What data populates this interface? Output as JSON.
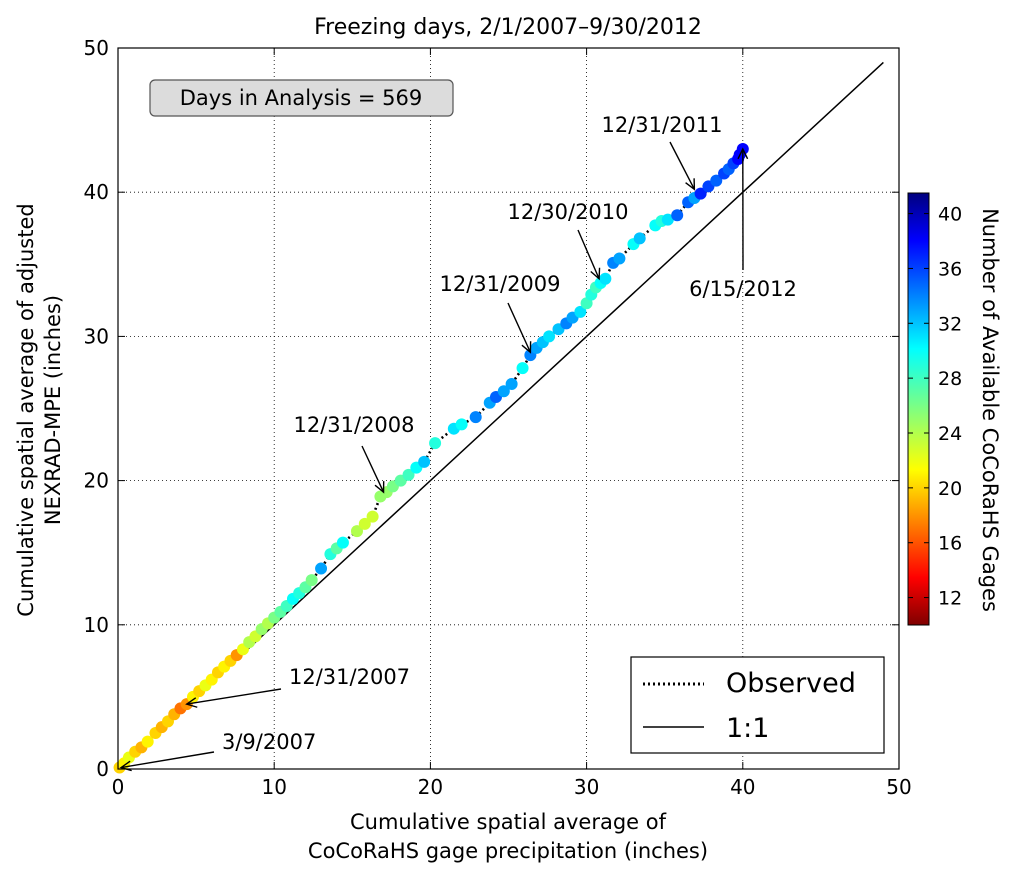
{
  "chart_data": {
    "type": "scatter",
    "title": "Freezing days, 2/1/2007–9/30/2012",
    "xlabel_lines": [
      "Cumulative spatial average of",
      "CoCoRaHS gage precipitation (inches)"
    ],
    "ylabel_lines": [
      "Cumulative spatial average of adjusted",
      "NEXRAD-MPE (inches)"
    ],
    "xlim": [
      0,
      50
    ],
    "ylim": [
      0,
      50
    ],
    "x_ticks": [
      0,
      10,
      20,
      30,
      40,
      50
    ],
    "y_ticks": [
      0,
      10,
      20,
      30,
      40,
      50
    ],
    "grid": true,
    "infobox": "Days in Analysis = 569",
    "legend": {
      "placement": "lower-right",
      "items": [
        {
          "label": "Observed",
          "style": "dotted"
        },
        {
          "label": "1:1",
          "style": "solid"
        }
      ]
    },
    "colorbar": {
      "label": "Number of Available CoCoRaHS Gages",
      "range": [
        10,
        41.5
      ],
      "ticks": [
        12,
        16,
        20,
        24,
        28,
        32,
        36,
        40
      ],
      "colormap": "jet"
    },
    "one_to_one_line": {
      "x": [
        0,
        49
      ],
      "y": [
        0,
        49
      ]
    },
    "annotations": [
      {
        "text": "12/31/2011",
        "x": 36.9,
        "y": 40.2
      },
      {
        "text": "6/15/2012",
        "x": 40.0,
        "y": 43.0
      },
      {
        "text": "12/30/2010",
        "x": 30.8,
        "y": 34.0
      },
      {
        "text": "12/31/2009",
        "x": 26.4,
        "y": 28.9
      },
      {
        "text": "12/31/2008",
        "x": 17.0,
        "y": 19.2
      },
      {
        "text": "12/31/2007",
        "x": 4.4,
        "y": 4.5
      },
      {
        "text": "3/9/2007",
        "x": 0.2,
        "y": 0.1
      }
    ],
    "series": [
      {
        "points": [
          [
            0.1,
            0.1,
            20
          ],
          [
            0.4,
            0.4,
            21
          ],
          [
            0.7,
            0.8,
            22
          ],
          [
            1.1,
            1.2,
            20
          ],
          [
            1.5,
            1.5,
            19
          ],
          [
            1.9,
            1.9,
            21
          ],
          [
            2.4,
            2.5,
            20
          ],
          [
            2.8,
            2.9,
            19
          ],
          [
            3.2,
            3.3,
            20
          ],
          [
            3.6,
            3.8,
            19
          ],
          [
            4.0,
            4.2,
            17
          ],
          [
            4.4,
            4.5,
            18
          ],
          [
            4.8,
            5.0,
            21
          ],
          [
            5.2,
            5.4,
            20
          ],
          [
            5.6,
            5.8,
            22
          ],
          [
            6.0,
            6.2,
            21
          ],
          [
            6.4,
            6.7,
            20
          ],
          [
            6.8,
            7.1,
            21
          ],
          [
            7.2,
            7.5,
            20
          ],
          [
            7.6,
            7.9,
            18
          ],
          [
            8.0,
            8.3,
            22
          ],
          [
            8.4,
            8.8,
            24
          ],
          [
            8.8,
            9.2,
            23
          ],
          [
            9.2,
            9.7,
            25
          ],
          [
            9.6,
            10.1,
            24
          ],
          [
            10.0,
            10.5,
            26
          ],
          [
            10.4,
            10.9,
            27
          ],
          [
            10.8,
            11.3,
            28
          ],
          [
            11.2,
            11.8,
            30
          ],
          [
            11.6,
            12.2,
            29
          ],
          [
            12.0,
            12.6,
            27
          ],
          [
            12.4,
            13.1,
            26
          ],
          [
            13.0,
            13.9,
            33
          ],
          [
            13.6,
            14.9,
            29
          ],
          [
            14.0,
            15.3,
            27
          ],
          [
            14.4,
            15.7,
            30
          ],
          [
            15.3,
            16.5,
            24
          ],
          [
            15.8,
            17.0,
            23
          ],
          [
            16.3,
            17.5,
            23
          ],
          [
            16.8,
            18.9,
            25
          ],
          [
            17.2,
            19.2,
            25
          ],
          [
            17.6,
            19.6,
            26
          ],
          [
            18.1,
            20.0,
            27
          ],
          [
            18.6,
            20.4,
            28
          ],
          [
            19.1,
            20.9,
            30
          ],
          [
            19.6,
            21.3,
            32
          ],
          [
            20.3,
            22.6,
            29
          ],
          [
            21.5,
            23.6,
            31
          ],
          [
            22.0,
            23.9,
            30
          ],
          [
            22.9,
            24.4,
            34
          ],
          [
            23.8,
            25.4,
            33
          ],
          [
            24.2,
            25.8,
            35
          ],
          [
            24.7,
            26.2,
            33
          ],
          [
            25.2,
            26.7,
            33
          ],
          [
            25.9,
            27.8,
            30
          ],
          [
            26.4,
            28.7,
            34
          ],
          [
            26.8,
            29.2,
            33
          ],
          [
            27.2,
            29.6,
            32
          ],
          [
            27.6,
            30.0,
            31
          ],
          [
            28.2,
            30.5,
            32
          ],
          [
            28.7,
            30.9,
            34
          ],
          [
            29.1,
            31.3,
            33
          ],
          [
            29.6,
            31.7,
            31
          ],
          [
            30.0,
            32.3,
            28
          ],
          [
            30.3,
            32.9,
            29
          ],
          [
            30.6,
            33.4,
            28
          ],
          [
            30.9,
            33.7,
            30
          ],
          [
            31.2,
            34.0,
            31
          ],
          [
            31.7,
            35.1,
            34
          ],
          [
            32.1,
            35.4,
            33
          ],
          [
            33.0,
            36.4,
            30
          ],
          [
            33.4,
            36.8,
            32
          ],
          [
            34.4,
            37.7,
            30
          ],
          [
            34.8,
            38.0,
            29
          ],
          [
            35.2,
            38.1,
            31
          ],
          [
            35.8,
            38.4,
            35
          ],
          [
            36.5,
            39.3,
            35
          ],
          [
            36.9,
            39.6,
            33
          ],
          [
            37.3,
            39.9,
            37
          ],
          [
            37.8,
            40.4,
            36
          ],
          [
            38.3,
            40.8,
            35
          ],
          [
            38.8,
            41.3,
            36
          ],
          [
            39.1,
            41.6,
            35
          ],
          [
            39.4,
            42.0,
            36
          ],
          [
            39.7,
            42.3,
            38
          ],
          [
            39.8,
            42.6,
            38
          ],
          [
            40.0,
            43.0,
            38
          ]
        ]
      }
    ]
  }
}
